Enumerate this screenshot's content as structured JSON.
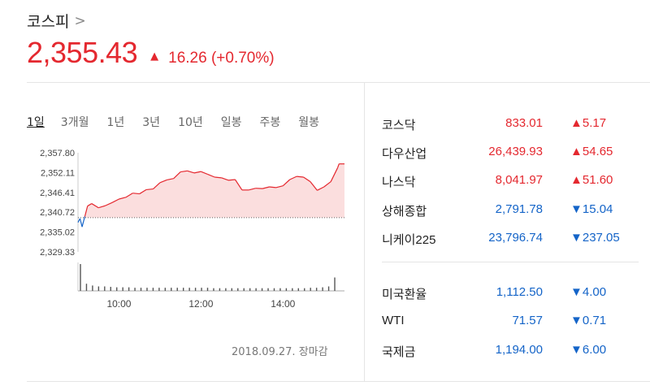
{
  "header": {
    "title": "코스피",
    "chevron": ">",
    "price": "2,355.43",
    "arrow": "▲",
    "change": "16.26 (+0.70%)",
    "color_up": "#e4282f",
    "color_down": "#1464c8"
  },
  "tabs": [
    {
      "label": "1일",
      "active": true
    },
    {
      "label": "3개월",
      "active": false
    },
    {
      "label": "1년",
      "active": false
    },
    {
      "label": "3년",
      "active": false
    },
    {
      "label": "10년",
      "active": false
    },
    {
      "label": "일봉",
      "active": false
    },
    {
      "label": "주봉",
      "active": false
    },
    {
      "label": "월봉",
      "active": false
    }
  ],
  "chart_data": {
    "type": "area",
    "y_ticks": [
      "2,357.80",
      "2,352.11",
      "2,346.41",
      "2,340.72",
      "2,335.02",
      "2,329.33"
    ],
    "ylim": [
      2329.33,
      2357.8
    ],
    "x_ticks": [
      "10:00",
      "12:00",
      "14:00"
    ],
    "xlim": [
      "09:00",
      "15:30"
    ],
    "prev_close": 2339.17,
    "prev_close_line": "dotted",
    "below_prev_color": "#1464c8",
    "above_prev_color": "#e4282f",
    "series": [
      {
        "x": [
          "09:00",
          "09:03",
          "09:06",
          "09:10",
          "09:14",
          "09:20",
          "09:30",
          "09:40",
          "09:50",
          "10:00",
          "10:10",
          "10:20",
          "10:30",
          "10:40",
          "10:50",
          "11:00",
          "11:10",
          "11:20",
          "11:30",
          "11:40",
          "11:50",
          "12:00",
          "12:10",
          "12:20",
          "12:30",
          "12:40",
          "12:50",
          "13:00",
          "13:10",
          "13:20",
          "13:30",
          "13:40",
          "13:50",
          "14:00",
          "14:10",
          "14:20",
          "14:30",
          "14:40",
          "14:50",
          "15:00",
          "15:10",
          "15:20",
          "15:22",
          "15:30"
        ],
        "y": [
          2337.8,
          2338.9,
          2336.5,
          2339.5,
          2342.5,
          2343.2,
          2342.0,
          2342.6,
          2343.5,
          2344.5,
          2345.0,
          2346.2,
          2346.0,
          2347.2,
          2347.4,
          2349.2,
          2350.0,
          2350.4,
          2352.3,
          2352.6,
          2352.0,
          2352.4,
          2351.6,
          2350.8,
          2350.6,
          2349.9,
          2350.1,
          2347.1,
          2347.1,
          2347.6,
          2347.5,
          2348.0,
          2347.8,
          2348.3,
          2350.1,
          2351.0,
          2350.8,
          2349.5,
          2347.0,
          2348.0,
          2349.5,
          2353.5,
          2354.6,
          2354.6
        ]
      }
    ],
    "volume": [
      60,
      16,
      12,
      10,
      10,
      9,
      8,
      8,
      8,
      7,
      7,
      7,
      7,
      7,
      7,
      7,
      7,
      7,
      7,
      7,
      7,
      7,
      6,
      6,
      6,
      6,
      6,
      6,
      6,
      6,
      6,
      6,
      6,
      6,
      6,
      6,
      6,
      6,
      7,
      7,
      8,
      10,
      30
    ]
  },
  "chart_footer": {
    "date": "2018.09.27. 장마감"
  },
  "markets": [
    {
      "name": "코스닥",
      "value": "833.01",
      "arrow": "▲",
      "change": "5.17",
      "dir": "up"
    },
    {
      "name": "다우산업",
      "value": "26,439.93",
      "arrow": "▲",
      "change": "54.65",
      "dir": "up"
    },
    {
      "name": "나스닥",
      "value": "8,041.97",
      "arrow": "▲",
      "change": "51.60",
      "dir": "up"
    },
    {
      "name": "상해종합",
      "value": "2,791.78",
      "arrow": "▼",
      "change": "15.04",
      "dir": "down"
    },
    {
      "name": "니케이225",
      "value": "23,796.74",
      "arrow": "▼",
      "change": "237.05",
      "dir": "down"
    }
  ],
  "commodities": [
    {
      "name": "미국환율",
      "value": "1,112.50",
      "arrow": "▼",
      "change": "4.00",
      "dir": "down"
    },
    {
      "name": "WTI",
      "value": "71.57",
      "arrow": "▼",
      "change": "0.71",
      "dir": "down"
    },
    {
      "name": "국제금",
      "value": "1,194.00",
      "arrow": "▼",
      "change": "6.00",
      "dir": "down"
    }
  ]
}
